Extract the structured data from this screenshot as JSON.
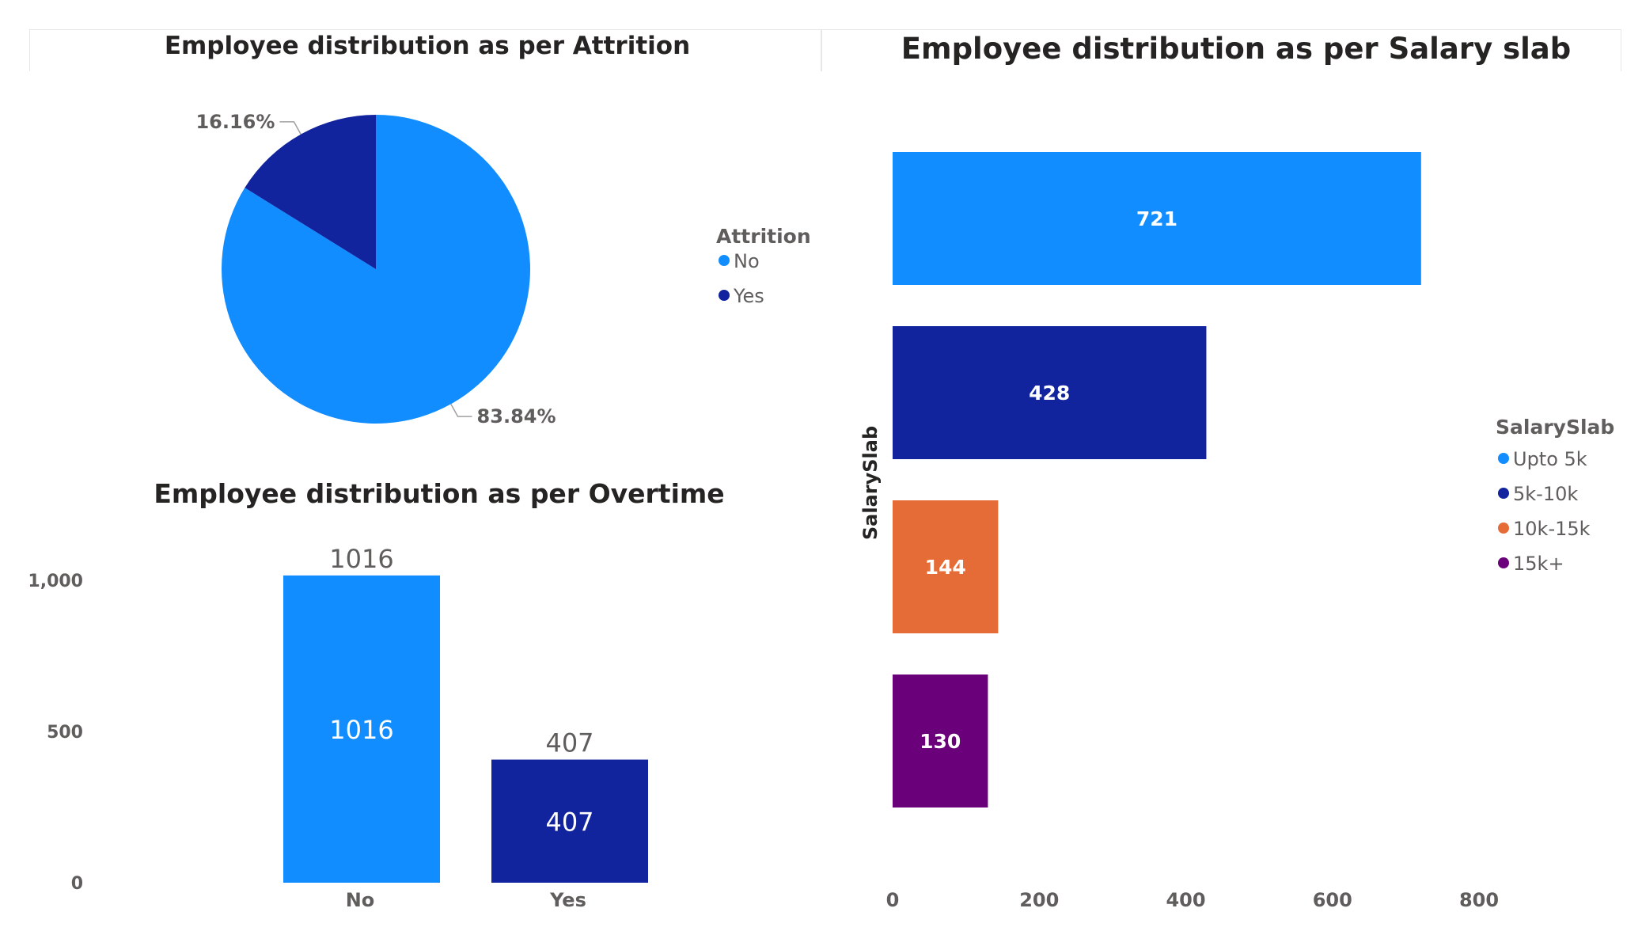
{
  "chart_data": [
    {
      "type": "pie",
      "title": "Employee distribution as per Attrition",
      "legend_title": "Attrition",
      "legend_position": "right",
      "slices": [
        {
          "label": "No",
          "value": 83.84,
          "display": "83.84%",
          "color": "#118dff"
        },
        {
          "label": "Yes",
          "value": 16.16,
          "display": "16.16%",
          "color": "#12239e"
        }
      ]
    },
    {
      "type": "bar",
      "title": "Employee distribution as per Overtime",
      "categories": [
        "No",
        "Yes"
      ],
      "values": [
        1016,
        407
      ],
      "colors": [
        "#118dff",
        "#12239e"
      ],
      "ylim": [
        0,
        1100
      ],
      "yticks": [
        0,
        500,
        1000
      ],
      "ytick_labels": [
        "0",
        "500",
        "1,000"
      ],
      "grid": false
    },
    {
      "type": "bar",
      "orientation": "horizontal",
      "title": "Employee distribution as per Salary slab",
      "ylabel": "SalarySlab",
      "legend_title": "SalarySlab",
      "legend_position": "right",
      "categories": [
        "Upto 5k",
        "5k-10k",
        "10k-15k",
        "15k+"
      ],
      "values": [
        721,
        428,
        144,
        130
      ],
      "colors": [
        "#118dff",
        "#12239e",
        "#e66c37",
        "#6b007b"
      ],
      "xlim": [
        0,
        800
      ],
      "xticks": [
        0,
        200,
        400,
        600,
        800
      ],
      "grid": false
    }
  ]
}
